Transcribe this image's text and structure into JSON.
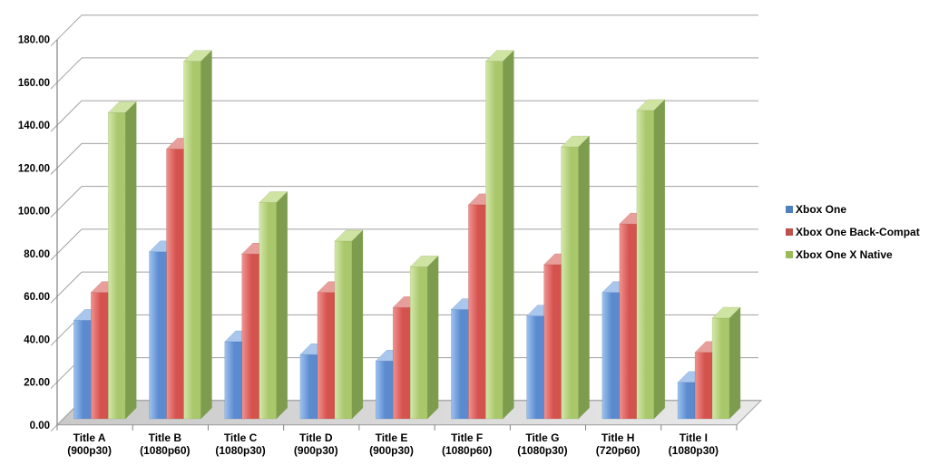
{
  "chart_data": {
    "type": "bar",
    "style": "3d-clustered-column",
    "title": "",
    "xlabel": "",
    "ylabel": "",
    "grid": true,
    "legend_position": "right",
    "axis": {
      "ymin": 0,
      "ymax": 180,
      "step": 20,
      "tick_labels": [
        "0.00",
        "20.00",
        "40.00",
        "60.00",
        "80.00",
        "100.00",
        "120.00",
        "140.00",
        "160.00",
        "180.00"
      ]
    },
    "categories": [
      {
        "label": "Title A",
        "mode": "(900p30)"
      },
      {
        "label": "Title B",
        "mode": "(1080p60)"
      },
      {
        "label": "Title C",
        "mode": "(1080p30)"
      },
      {
        "label": "Title D",
        "mode": "(900p30)"
      },
      {
        "label": "Title E",
        "mode": "(900p30)"
      },
      {
        "label": "Title F",
        "mode": "(1080p60)"
      },
      {
        "label": "Title G",
        "mode": "(1080p30)"
      },
      {
        "label": "Title H",
        "mode": "(720p60)"
      },
      {
        "label": "Title I",
        "mode": "(1080p30)"
      }
    ],
    "series": [
      {
        "name": "Xbox One",
        "color": "#4f81bd",
        "color_light": "#9cc2f0",
        "color_dark": "#5b8ace",
        "color_top": "#a9c6ec",
        "color_side": "#4470ad",
        "values": [
          46,
          78,
          36,
          30,
          27,
          51,
          48,
          59,
          17
        ]
      },
      {
        "name": "Xbox One Back-Compat",
        "color": "#c0504d",
        "color_light": "#f0938f",
        "color_dark": "#d5534f",
        "color_top": "#e89f9b",
        "color_side": "#a8423f",
        "values": [
          59,
          126,
          77,
          59,
          52,
          100,
          72,
          91,
          31
        ]
      },
      {
        "name": "Xbox One X Native",
        "color": "#9bbb59",
        "color_light": "#d4e8aa",
        "color_dark": "#a9c76b",
        "color_top": "#cfe3a3",
        "color_side": "#7e9c4e",
        "values": [
          143,
          167,
          101,
          83,
          71,
          167,
          127,
          144,
          47
        ]
      }
    ],
    "colors": {
      "gridline": "#a0a0a0",
      "axis_line": "#808080",
      "floor_front": "#c9c9c9",
      "floor_back": "#e9e9e9",
      "floor_edge": "#999999",
      "text": "#000000",
      "background": "#ffffff"
    }
  }
}
